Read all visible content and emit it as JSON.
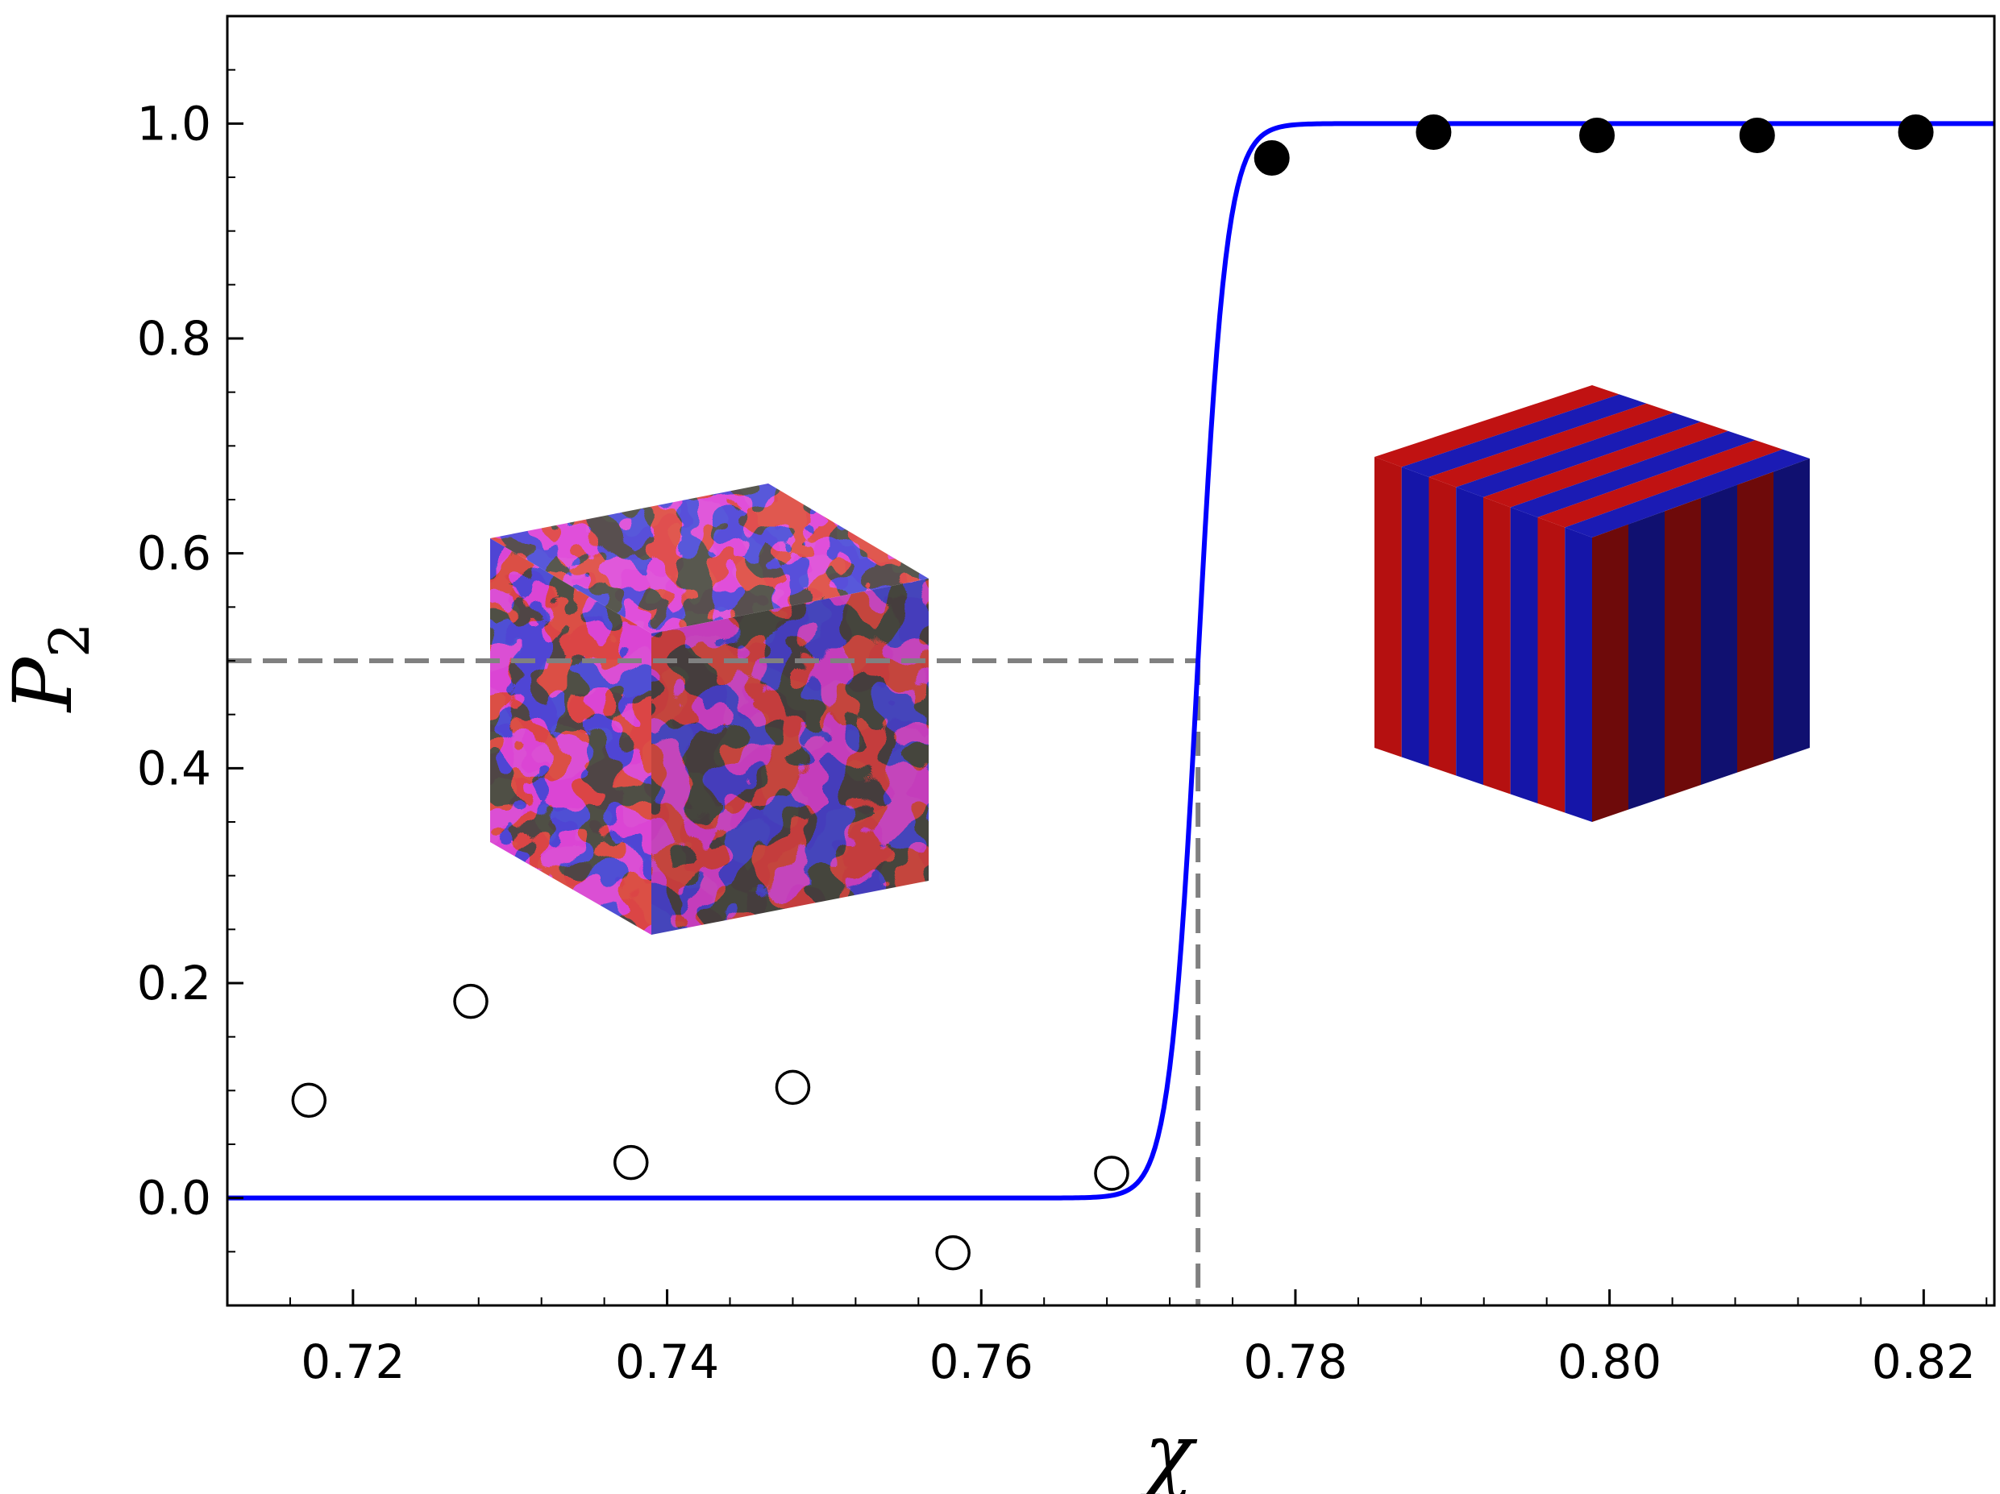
{
  "chart_data": {
    "type": "scatter",
    "xlabel": "χ",
    "ylabel": "P",
    "ylabel_subscript": "2",
    "xlim": [
      0.712,
      0.8245
    ],
    "ylim": [
      -0.1,
      1.1
    ],
    "x_ticks": [
      0.72,
      0.74,
      0.76,
      0.78,
      0.8,
      0.82
    ],
    "x_tick_labels": [
      "0.72",
      "0.74",
      "0.76",
      "0.78",
      "0.80",
      "0.82"
    ],
    "y_ticks": [
      0.0,
      0.2,
      0.4,
      0.6,
      0.8,
      1.0
    ],
    "y_tick_labels": [
      "0.0",
      "0.2",
      "0.4",
      "0.6",
      "0.8",
      "1.0"
    ],
    "grid": false,
    "series": [
      {
        "marker": "open-circle",
        "color": "#000000",
        "x": [
          0.7172,
          0.7275,
          0.7377,
          0.748,
          0.7582,
          0.7683
        ],
        "y": [
          0.091,
          0.183,
          0.033,
          0.103,
          -0.051,
          0.023
        ]
      },
      {
        "marker": "filled-circle",
        "color": "#000000",
        "x": [
          0.7785,
          0.7888,
          0.7992,
          0.8094,
          0.8195
        ],
        "y": [
          0.968,
          0.992,
          0.989,
          0.989,
          0.992
        ]
      },
      {
        "marker": "line",
        "color": "#0000ff",
        "fit": "logistic",
        "midpoint": 0.7738,
        "steepness": 1100,
        "x_range": [
          0.712,
          0.8245
        ]
      }
    ],
    "reference_lines": {
      "color": "#808080",
      "style": "dashed",
      "y": 0.5,
      "x": 0.7738
    },
    "insets": [
      {
        "name": "disordered-morphology",
        "colors": [
          "#b51010",
          "#1515a8"
        ]
      },
      {
        "name": "lamellar-morphology",
        "colors": [
          "#b51010",
          "#1515a8"
        ]
      }
    ]
  }
}
